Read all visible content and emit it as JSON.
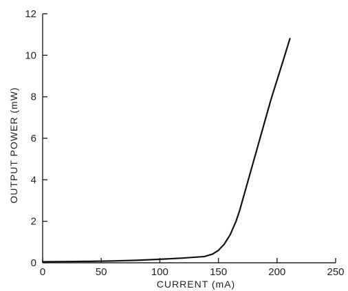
{
  "chart_data": {
    "type": "line",
    "xlabel": "CURRENT (mA)",
    "ylabel": "OUTPUT POWER (mW)",
    "xlim": [
      0,
      250
    ],
    "ylim": [
      0,
      12
    ],
    "xticks": [
      0,
      50,
      100,
      150,
      200,
      250
    ],
    "yticks": [
      0,
      2,
      4,
      6,
      8,
      10,
      12
    ],
    "grid": false,
    "series": [
      {
        "color": "#111111",
        "x": [
          0,
          20,
          40,
          60,
          80,
          100,
          120,
          138,
          145,
          150,
          155,
          160,
          165,
          168,
          175,
          185,
          195,
          205,
          211
        ],
        "y": [
          0.05,
          0.06,
          0.07,
          0.09,
          0.12,
          0.17,
          0.23,
          0.3,
          0.42,
          0.6,
          0.9,
          1.35,
          2.0,
          2.5,
          3.9,
          5.9,
          7.9,
          9.7,
          10.8
        ]
      }
    ]
  }
}
